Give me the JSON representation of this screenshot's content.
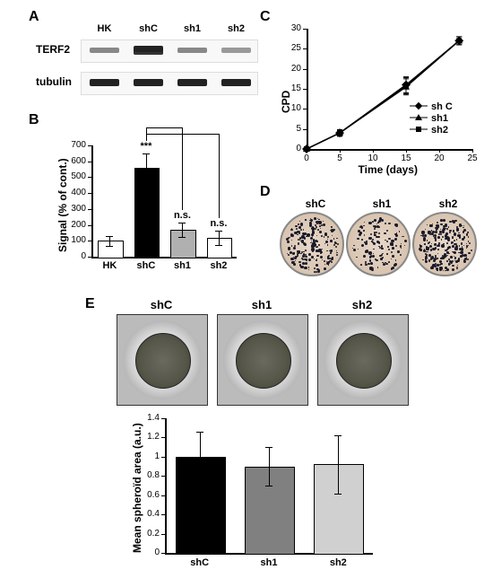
{
  "panelA": {
    "label": "A",
    "lanes": [
      "HK",
      "shC",
      "sh1",
      "sh2"
    ],
    "row1_label": "TERF2",
    "row2_label": "tubulin",
    "lane_intensity_terf2": [
      "#888",
      "#222",
      "#888",
      "#999"
    ],
    "lane_intensity_tub": [
      "#222",
      "#222",
      "#222",
      "#222"
    ],
    "band_bg": "#f0f0f0"
  },
  "panelB": {
    "label": "B",
    "type": "bar",
    "ylabel": "Signal (% of cont.)",
    "categories": [
      "HK",
      "shC",
      "sh1",
      "sh2"
    ],
    "values": [
      100,
      560,
      170,
      120
    ],
    "errors": [
      30,
      90,
      45,
      45
    ],
    "bar_colors": [
      "#ffffff",
      "#000000",
      "#b0b0b0",
      "#ffffff"
    ],
    "ylim": [
      0,
      700
    ],
    "ytick_step": 100,
    "sig": [
      "",
      "***",
      "n.s.",
      "n.s."
    ],
    "axis_color": "#000000",
    "label_fontsize": 12
  },
  "panelC": {
    "label": "C",
    "type": "line",
    "xlabel": "Time (days)",
    "ylabel": "CPD",
    "xlim": [
      0,
      25
    ],
    "ylim": [
      0,
      30
    ],
    "xtick_step": 5,
    "ytick_step": 5,
    "series": [
      {
        "name": "sh C",
        "marker": "diamond",
        "x": [
          0,
          5,
          15,
          23
        ],
        "y": [
          0,
          4,
          16,
          27
        ],
        "err": [
          0,
          0.8,
          2,
          1
        ]
      },
      {
        "name": "sh1",
        "marker": "triangle",
        "x": [
          0,
          5,
          15,
          23
        ],
        "y": [
          0,
          4,
          15.5,
          27
        ],
        "err": [
          0,
          0.8,
          2,
          1
        ]
      },
      {
        "name": "sh2",
        "marker": "square",
        "x": [
          0,
          5,
          15,
          23
        ],
        "y": [
          0,
          4,
          15.8,
          27
        ],
        "err": [
          0,
          0.8,
          2,
          1
        ]
      }
    ],
    "line_color": "#000000",
    "axis_color": "#000000",
    "label_fontsize": 12
  },
  "panelD": {
    "label": "D",
    "dishes": [
      "shC",
      "sh1",
      "sh2"
    ],
    "colony_density": [
      220,
      140,
      260
    ]
  },
  "panelE": {
    "label": "E",
    "spheroid_labels": [
      "shC",
      "sh1",
      "sh2"
    ],
    "chart": {
      "type": "bar",
      "ylabel": "Mean spheroïd area (a.u.)",
      "categories": [
        "shC",
        "sh1",
        "sh2"
      ],
      "values": [
        1.0,
        0.9,
        0.92
      ],
      "errors": [
        0.26,
        0.2,
        0.3
      ],
      "bar_colors": [
        "#000000",
        "#808080",
        "#d0d0d0"
      ],
      "ylim": [
        0,
        1.4
      ],
      "yticks": [
        0,
        0.2,
        0.4,
        0.6,
        0.8,
        1,
        1.2,
        1.4
      ],
      "axis_color": "#000000",
      "label_fontsize": 12
    }
  }
}
